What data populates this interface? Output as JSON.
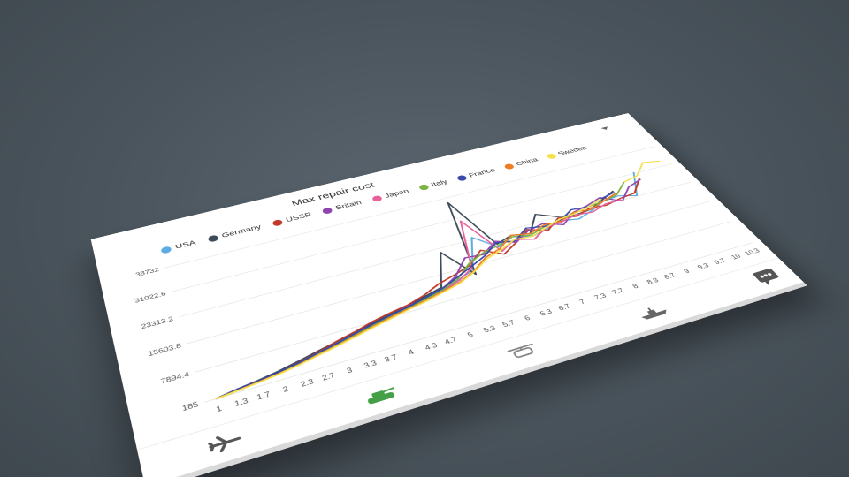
{
  "chart_data": {
    "type": "line",
    "title": "Max repair cost",
    "y_ticks": [
      "185",
      "7894.4",
      "15603.8",
      "23313.2",
      "31022.6",
      "38732"
    ],
    "ylim": [
      185,
      38732
    ],
    "categories": [
      "1",
      "1.3",
      "1.7",
      "2",
      "2.3",
      "2.7",
      "3",
      "3.3",
      "3.7",
      "4",
      "4.3",
      "4.7",
      "5",
      "5.3",
      "5.7",
      "6",
      "6.3",
      "6.7",
      "7",
      "7.3",
      "7.7",
      "8",
      "8.3",
      "8.7",
      "9",
      "9.3",
      "9.7",
      "10",
      "10.3"
    ],
    "legend_position": "top",
    "grid": true,
    "series": [
      {
        "name": "USA",
        "color": "#5dade2",
        "values": [
          185,
          900,
          1500,
          2300,
          3200,
          4300,
          5300,
          6400,
          7500,
          8600,
          9200,
          10500,
          11800,
          12700,
          14500,
          24000,
          19000,
          21000,
          19500,
          20500,
          22000,
          21000,
          22500,
          24500,
          25000,
          23500,
          31500,
          null,
          null
        ]
      },
      {
        "name": "Germany",
        "color": "#3d4a57",
        "values": [
          185,
          1000,
          1600,
          2400,
          3400,
          4500,
          5500,
          6600,
          7700,
          8800,
          9600,
          10800,
          12000,
          22000,
          13000,
          37000,
          20000,
          21500,
          20500,
          26000,
          23500,
          22500,
          23000,
          25000,
          27000,
          null,
          null,
          null,
          null
        ]
      },
      {
        "name": "USSR",
        "color": "#c0392b",
        "values": [
          185,
          800,
          1400,
          2100,
          3100,
          4200,
          5600,
          6700,
          8000,
          9000,
          9800,
          11200,
          13200,
          14500,
          16000,
          19500,
          16500,
          19000,
          22000,
          20000,
          23000,
          22000,
          23500,
          23000,
          24000,
          24500,
          29000,
          null,
          null
        ]
      },
      {
        "name": "Britain",
        "color": "#8e44ad",
        "values": [
          185,
          700,
          1300,
          2000,
          2900,
          4000,
          5000,
          6200,
          7200,
          8300,
          9500,
          10200,
          11500,
          14000,
          18500,
          18000,
          21000,
          19000,
          21500,
          22500,
          20500,
          23500,
          24500,
          26000,
          23000,
          27000,
          28500,
          null,
          null
        ]
      },
      {
        "name": "Japan",
        "color": "#e8609a",
        "values": [
          185,
          750,
          1250,
          1900,
          2800,
          3800,
          4800,
          5900,
          7000,
          8100,
          9000,
          10000,
          11000,
          12500,
          15000,
          30000,
          17500,
          20000,
          18500,
          21000,
          21500,
          22500,
          22000,
          23500,
          23500,
          null,
          null,
          null,
          null
        ]
      },
      {
        "name": "Italy",
        "color": "#7cb342",
        "values": [
          185,
          850,
          1350,
          2000,
          2700,
          3700,
          4900,
          6000,
          7100,
          8200,
          9100,
          10100,
          11300,
          13000,
          16500,
          18500,
          19500,
          21000,
          20000,
          21500,
          22000,
          23000,
          24000,
          24500,
          25500,
          29000,
          null,
          null,
          null
        ]
      },
      {
        "name": "France",
        "color": "#3949ab",
        "values": [
          185,
          950,
          1450,
          2200,
          3000,
          4100,
          5100,
          6300,
          7400,
          8400,
          9300,
          10400,
          11600,
          13500,
          15500,
          17500,
          20500,
          19500,
          22500,
          21500,
          22000,
          24500,
          24000,
          25500,
          26500,
          null,
          null,
          null,
          null
        ]
      },
      {
        "name": "China",
        "color": "#ef7d22",
        "values": [
          185,
          650,
          1200,
          1800,
          2600,
          3600,
          4600,
          5700,
          6800,
          7900,
          8800,
          9700,
          10800,
          12000,
          14000,
          17000,
          18500,
          21500,
          20500,
          22000,
          21800,
          23500,
          23000,
          24500,
          26000,
          null,
          null,
          null,
          null
        ]
      },
      {
        "name": "Sweden",
        "color": "#f4e04d",
        "values": [
          185,
          600,
          1100,
          1700,
          2500,
          3500,
          4500,
          5500,
          6600,
          7600,
          8600,
          9500,
          10600,
          11800,
          13800,
          16500,
          18000,
          20000,
          19500,
          21000,
          22500,
          23000,
          24000,
          25500,
          null,
          29000,
          30000,
          34000,
          33000
        ]
      }
    ]
  },
  "ui": {
    "tabs": [
      {
        "name": "aircraft",
        "icon": "airplane-icon",
        "color": "#555555"
      },
      {
        "name": "ground",
        "icon": "tank-icon",
        "color": "#43a047"
      },
      {
        "name": "helicopter",
        "icon": "helicopter-icon",
        "color": "#888888"
      },
      {
        "name": "naval",
        "icon": "ship-icon",
        "color": "#666666"
      }
    ],
    "chat_icon": "chat-icon"
  }
}
